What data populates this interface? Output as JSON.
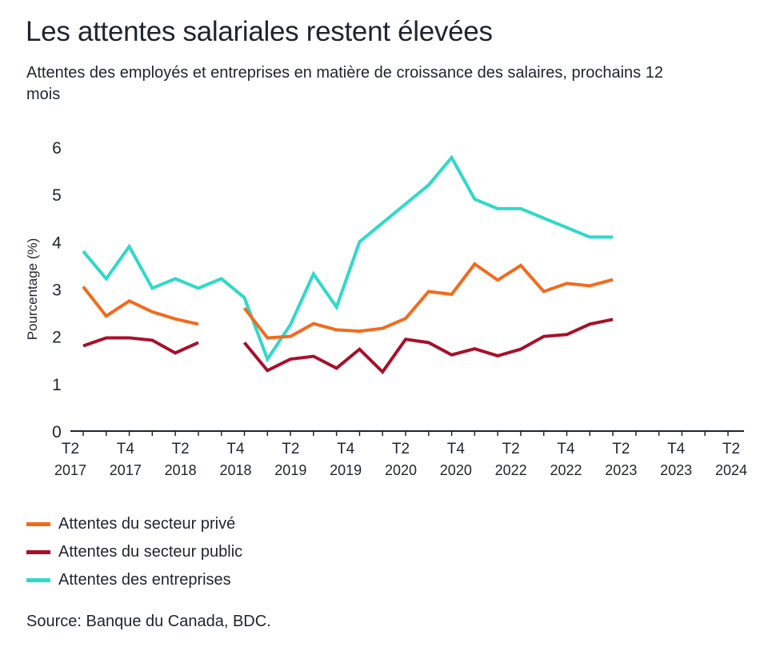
{
  "title": "Les attentes salariales restent élevées",
  "subtitle": "Attentes des employés et entreprises en matière de croissance des salaires, prochains 12 mois",
  "source": "Source: Banque du Canada, BDC.",
  "chart_data": {
    "type": "line",
    "ylabel": "Pourcentage (%)",
    "ylim": [
      0,
      6
    ],
    "yticks": [
      "0",
      "1",
      "2",
      "3",
      "4",
      "5",
      "6"
    ],
    "grid": false,
    "legend_position": "bottom-left",
    "x": [
      "T2 2017",
      "T3 2017",
      "T4 2017",
      "T1 2018",
      "T2 2018",
      "T3 2018",
      "T4 2018",
      "T1 2019",
      "T2 2019",
      "T3 2019",
      "T4 2019",
      "T1 2020",
      "T2 2020",
      "T3 2020",
      "T4 2020",
      "T1 2021",
      "T2 2021",
      "T3 2021",
      "T4 2021",
      "T1 2022",
      "T2 2022",
      "T3 2022",
      "T4 2022",
      "T1 2023",
      "T2 2023",
      "T3 2023",
      "T4 2023",
      "T1 2024",
      "T2 2024"
    ],
    "xticks": [
      {
        "top": "T2",
        "bottom": "2017"
      },
      {
        "top": "T4",
        "bottom": "2017"
      },
      {
        "top": "T2",
        "bottom": "2018"
      },
      {
        "top": "T4",
        "bottom": "2018"
      },
      {
        "top": "T2",
        "bottom": "2019"
      },
      {
        "top": "T4",
        "bottom": "2019"
      },
      {
        "top": "T2",
        "bottom": "2020"
      },
      {
        "top": "T4",
        "bottom": "2020"
      },
      {
        "top": "T2",
        "bottom": "2022"
      },
      {
        "top": "T4",
        "bottom": "2022"
      },
      {
        "top": "T2",
        "bottom": "2023"
      },
      {
        "top": "T4",
        "bottom": "2023"
      },
      {
        "top": "T2",
        "bottom": "2024"
      }
    ],
    "series": [
      {
        "name": "Attentes du secteur privé",
        "color": "#f26b1d",
        "values": [
          3.05,
          2.43,
          2.75,
          2.52,
          2.37,
          2.26,
          null,
          2.6,
          1.97,
          2.0,
          2.27,
          2.14,
          2.11,
          2.17,
          2.38,
          2.95,
          2.89,
          3.53,
          3.19,
          3.5,
          2.95,
          3.12,
          3.07,
          3.2,
          null,
          null,
          null,
          null,
          null
        ]
      },
      {
        "name": "Attentes du secteur public",
        "color": "#a8102a",
        "values": [
          1.8,
          1.97,
          1.97,
          1.92,
          1.65,
          1.87,
          null,
          1.87,
          1.28,
          1.52,
          1.58,
          1.33,
          1.73,
          1.25,
          1.94,
          1.87,
          1.61,
          1.74,
          1.59,
          1.73,
          2.0,
          2.04,
          2.26,
          2.36,
          null,
          null,
          null,
          null,
          null
        ]
      },
      {
        "name": "Attentes des entreprises",
        "color": "#2fd9c8",
        "values": [
          3.8,
          3.22,
          3.9,
          3.02,
          3.22,
          3.02,
          3.22,
          2.82,
          1.52,
          2.25,
          3.32,
          2.62,
          4.0,
          4.4,
          4.8,
          5.2,
          5.78,
          4.9,
          4.7,
          4.7,
          4.5,
          4.3,
          4.1,
          4.1,
          null,
          null,
          null,
          null,
          null
        ]
      }
    ]
  }
}
